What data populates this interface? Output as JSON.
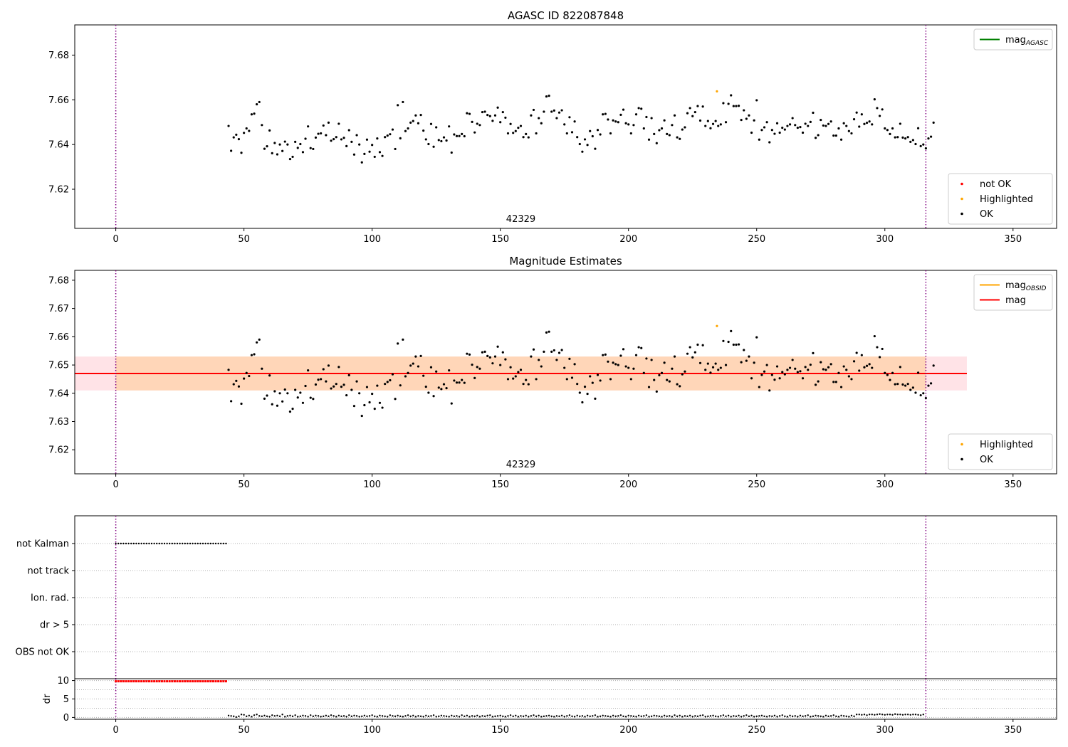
{
  "chart_data": [
    {
      "type": "scatter",
      "title": "AGASC ID 822087848",
      "xlabel": "",
      "ylabel": "",
      "xlim": [
        -16,
        367
      ],
      "ylim": [
        7.6025,
        7.6935
      ],
      "xticks": [
        0,
        50,
        100,
        150,
        200,
        250,
        300,
        350
      ],
      "yticks": [
        7.62,
        7.64,
        7.66,
        7.68
      ],
      "ytick_format": 2,
      "vlines": [
        0,
        316
      ],
      "annotation": "42329",
      "legends": [
        {
          "position": "upper-right",
          "entries": [
            {
              "label": "mag",
              "sub": "AGASC",
              "color": "#008000",
              "kind": "line"
            }
          ]
        },
        {
          "position": "lower-right",
          "entries": [
            {
              "label": "not OK",
              "color": "#ff0000",
              "kind": "dot"
            },
            {
              "label": "Highlighted",
              "color": "#ffa500",
              "kind": "dot"
            },
            {
              "label": "OK",
              "color": "#000000",
              "kind": "dot"
            }
          ]
        }
      ],
      "highlighted": [
        [
          234.5,
          7.6638
        ]
      ],
      "ok_x_start": 44,
      "ok_x_step": 1,
      "ok_values": [
        7.6483,
        7.6372,
        7.6432,
        7.6444,
        7.6424,
        7.6363,
        7.6452,
        7.6472,
        7.6461,
        7.6535,
        7.6538,
        7.658,
        7.659,
        7.6487,
        7.6381,
        7.6392,
        7.6463,
        7.6361,
        7.6407,
        7.6356,
        7.64,
        7.6371,
        7.6413,
        7.64,
        7.6335,
        7.6345,
        7.6412,
        7.6385,
        7.6402,
        7.6366,
        7.6426,
        7.6481,
        7.6384,
        7.638,
        7.6431,
        7.6448,
        7.645,
        7.6485,
        7.6442,
        7.6498,
        7.6417,
        7.6424,
        7.6433,
        7.6493,
        7.6423,
        7.643,
        7.6393,
        7.6464,
        7.6412,
        7.6355,
        7.6442,
        7.64,
        7.632,
        7.6358,
        7.6422,
        7.6368,
        7.6398,
        7.6345,
        7.6427,
        7.6366,
        7.6349,
        7.6433,
        7.644,
        7.6446,
        7.6467,
        7.638,
        7.6576,
        7.6428,
        7.659,
        7.646,
        7.6472,
        7.6498,
        7.6505,
        7.653,
        7.6495,
        7.6532,
        7.6462,
        7.6423,
        7.6402,
        7.6492,
        7.639,
        7.6477,
        7.642,
        7.6415,
        7.6432,
        7.6418,
        7.6481,
        7.6364,
        7.6445,
        7.6438,
        7.6438,
        7.6447,
        7.6437,
        7.654,
        7.6537,
        7.6501,
        7.6454,
        7.6493,
        7.6487,
        7.6545,
        7.6547,
        7.6532,
        7.6527,
        7.6506,
        7.653,
        7.6565,
        7.65,
        7.6545,
        7.652,
        7.645,
        7.6492,
        7.6452,
        7.646,
        7.6475,
        7.6483,
        7.6433,
        7.6447,
        7.6432,
        7.653,
        7.6555,
        7.645,
        7.6518,
        7.6495,
        7.6547,
        7.6615,
        7.6618,
        7.6547,
        7.6552,
        7.6518,
        7.6543,
        7.6553,
        7.649,
        7.645,
        7.6522,
        7.6455,
        7.6503,
        7.6433,
        7.6402,
        7.6368,
        7.6423,
        7.6398,
        7.646,
        7.6437,
        7.6381,
        7.6465,
        7.6445,
        7.6535,
        7.6537,
        7.6512,
        7.645,
        7.6508,
        7.6503,
        7.65,
        7.6533,
        7.6556,
        7.6495,
        7.649,
        7.645,
        7.6487,
        7.6535,
        7.6563,
        7.656,
        7.6472,
        7.6523,
        7.6422,
        7.6518,
        7.6447,
        7.6406,
        7.6464,
        7.6472,
        7.6508,
        7.6447,
        7.6442,
        7.6487,
        7.653,
        7.6432,
        7.6425,
        7.6467,
        7.6477,
        7.654,
        7.6563,
        7.6527,
        7.6545,
        7.6572,
        7.6507,
        7.657,
        7.6483,
        7.6505,
        7.6473,
        7.6492,
        7.6505,
        7.6483,
        7.649,
        7.6585,
        7.65,
        7.6582,
        7.662,
        7.6572,
        7.6572,
        7.6573,
        7.651,
        7.6553,
        7.6515,
        7.653,
        7.6453,
        7.6508,
        7.6598,
        7.6422,
        7.6465,
        7.6477,
        7.65,
        7.641,
        7.6465,
        7.6448,
        7.6495,
        7.6453,
        7.6475,
        7.6467,
        7.6483,
        7.649,
        7.6518,
        7.6487,
        7.6475,
        7.6478,
        7.6453,
        7.6493,
        7.6483,
        7.6501,
        7.6542,
        7.643,
        7.6442,
        7.651,
        7.6485,
        7.6483,
        7.6492,
        7.6503,
        7.644,
        7.644,
        7.6472,
        7.6422,
        7.6495,
        7.6483,
        7.646,
        7.645,
        7.6513,
        7.6543,
        7.648,
        7.6535,
        7.6492,
        7.6497,
        7.6503,
        7.649,
        7.6602,
        7.6563,
        7.6528,
        7.6557,
        7.6472,
        7.6465,
        7.6447,
        7.6472,
        7.6432,
        7.6433,
        7.6493,
        7.6431,
        7.6427,
        7.6433,
        7.6412,
        7.642,
        7.6402,
        7.6473,
        7.6393,
        7.64,
        7.6383,
        7.6427,
        7.6435,
        7.6498
      ]
    },
    {
      "type": "scatter",
      "title": "Magnitude Estimates",
      "xlabel": "",
      "ylabel": "",
      "xlim": [
        -16,
        367
      ],
      "ylim": [
        7.6115,
        7.6835
      ],
      "xticks": [
        0,
        50,
        100,
        150,
        200,
        250,
        300,
        350
      ],
      "yticks": [
        7.62,
        7.63,
        7.64,
        7.65,
        7.66,
        7.67,
        7.68
      ],
      "ytick_format": 2,
      "vlines": [
        0,
        316
      ],
      "annotation": "42329",
      "mag_line": 7.647,
      "bands": [
        {
          "x": [
            -16,
            332
          ],
          "y": [
            7.641,
            7.653
          ],
          "color": "#ffb6c1",
          "opacity": 0.38
        },
        {
          "x": [
            0,
            316
          ],
          "y": [
            7.641,
            7.653
          ],
          "color": "#ffa500",
          "opacity": 0.2
        }
      ],
      "legends": [
        {
          "position": "upper-right",
          "entries": [
            {
              "label": "mag",
              "sub": "OBSID",
              "color": "#ffa500",
              "kind": "line"
            },
            {
              "label": "mag",
              "sub": "",
              "color": "#ff0000",
              "kind": "line"
            }
          ]
        },
        {
          "position": "lower-right",
          "entries": [
            {
              "label": "Highlighted",
              "color": "#ffa500",
              "kind": "dot"
            },
            {
              "label": "OK",
              "color": "#000000",
              "kind": "dot"
            }
          ]
        }
      ],
      "highlighted": [
        [
          234.5,
          7.6638
        ]
      ]
    },
    {
      "type": "scatter",
      "title": "",
      "xlabel": "",
      "ylabel": "",
      "xlim": [
        -16,
        367
      ],
      "categories": [
        "not Kalman",
        "not track",
        "Ion. rad.",
        "dr > 5",
        "OBS not OK"
      ],
      "flag_series": [
        {
          "category": "not Kalman",
          "x": [
            0,
            43
          ],
          "step": 1,
          "color": "#000000"
        }
      ],
      "vlines": [
        0,
        316
      ]
    },
    {
      "type": "scatter",
      "title": "",
      "xlabel": "",
      "ylabel": "dr",
      "xlim": [
        -16,
        367
      ],
      "ylim": [
        -0.5,
        10.5
      ],
      "xticks": [
        0,
        50,
        100,
        150,
        200,
        250,
        300,
        350
      ],
      "yticks": [
        0,
        5,
        10
      ],
      "ytick_format": 0,
      "vlines": [
        0,
        316
      ],
      "dr_high": {
        "x": [
          0,
          43
        ],
        "y": 9.8,
        "color": "#ff0000"
      },
      "dr_low_x_start": 44,
      "dr_low_values": [
        0.5,
        0.4,
        0.3,
        0.1,
        0.3,
        0.8,
        0.7,
        0.3,
        0.5,
        0.2,
        0.6,
        0.8,
        0.4,
        0.3,
        0.5,
        0.3,
        0.2,
        0.6,
        0.4,
        0.5,
        0.3,
        0.8,
        0.2,
        0.4,
        0.5,
        0.3,
        0.6,
        0.2,
        0.3,
        0.5,
        0.4,
        0.2,
        0.6,
        0.3,
        0.5,
        0.4,
        0.2,
        0.3,
        0.5,
        0.3,
        0.6,
        0.4,
        0.2,
        0.5,
        0.3,
        0.4,
        0.2,
        0.6,
        0.3,
        0.5,
        0.4,
        0.2,
        0.3,
        0.5,
        0.3,
        0.4,
        0.6,
        0.3,
        0.2,
        0.5,
        0.4,
        0.3,
        0.2,
        0.6,
        0.4,
        0.3,
        0.5,
        0.3,
        0.2,
        0.4,
        0.6,
        0.3,
        0.5,
        0.2,
        0.4,
        0.3,
        0.2,
        0.5,
        0.3,
        0.4,
        0.6,
        0.2,
        0.3,
        0.5,
        0.4,
        0.3,
        0.2,
        0.5,
        0.3,
        0.4,
        0.2,
        0.6,
        0.3,
        0.5,
        0.2,
        0.4,
        0.3,
        0.5,
        0.2,
        0.4,
        0.3,
        0.5,
        0.6,
        0.2,
        0.3,
        0.4,
        0.5,
        0.3,
        0.2,
        0.4,
        0.6,
        0.3,
        0.5,
        0.2,
        0.4,
        0.3,
        0.5,
        0.2,
        0.4,
        0.6,
        0.3,
        0.5,
        0.2,
        0.3,
        0.4,
        0.5,
        0.3,
        0.2,
        0.4,
        0.3,
        0.5,
        0.2,
        0.4,
        0.6,
        0.3,
        0.2,
        0.5,
        0.3,
        0.4,
        0.2,
        0.5,
        0.3,
        0.4,
        0.6,
        0.2,
        0.3,
        0.5,
        0.4,
        0.3,
        0.2,
        0.5,
        0.3,
        0.4,
        0.6,
        0.3,
        0.2,
        0.5,
        0.4,
        0.3,
        0.2,
        0.5,
        0.3,
        0.4,
        0.6,
        0.2,
        0.3,
        0.5,
        0.4,
        0.3,
        0.2,
        0.5,
        0.3,
        0.4,
        0.2,
        0.6,
        0.3,
        0.5,
        0.2,
        0.4,
        0.3,
        0.5,
        0.2,
        0.4,
        0.3,
        0.5,
        0.6,
        0.2,
        0.3,
        0.4,
        0.5,
        0.3,
        0.2,
        0.4,
        0.6,
        0.3,
        0.5,
        0.2,
        0.4,
        0.3,
        0.5,
        0.2,
        0.4,
        0.6,
        0.3,
        0.5,
        0.2,
        0.3,
        0.4,
        0.5,
        0.3,
        0.2,
        0.4,
        0.3,
        0.5,
        0.2,
        0.4,
        0.6,
        0.3,
        0.2,
        0.5,
        0.3,
        0.4,
        0.2,
        0.5,
        0.3,
        0.4,
        0.6,
        0.2,
        0.3,
        0.5,
        0.4,
        0.3,
        0.2,
        0.5,
        0.3,
        0.4,
        0.6,
        0.3,
        0.2,
        0.5,
        0.4,
        0.3,
        0.2,
        0.5,
        0.3,
        0.8,
        0.8,
        0.7,
        0.8,
        0.6,
        0.8,
        0.8,
        0.7,
        0.8,
        0.9,
        0.8,
        0.7,
        0.8,
        0.8,
        0.7,
        0.9,
        0.8,
        0.8,
        0.7,
        0.8,
        0.8,
        0.7,
        0.8,
        0.8,
        0.7,
        0.6,
        0.8
      ]
    }
  ]
}
